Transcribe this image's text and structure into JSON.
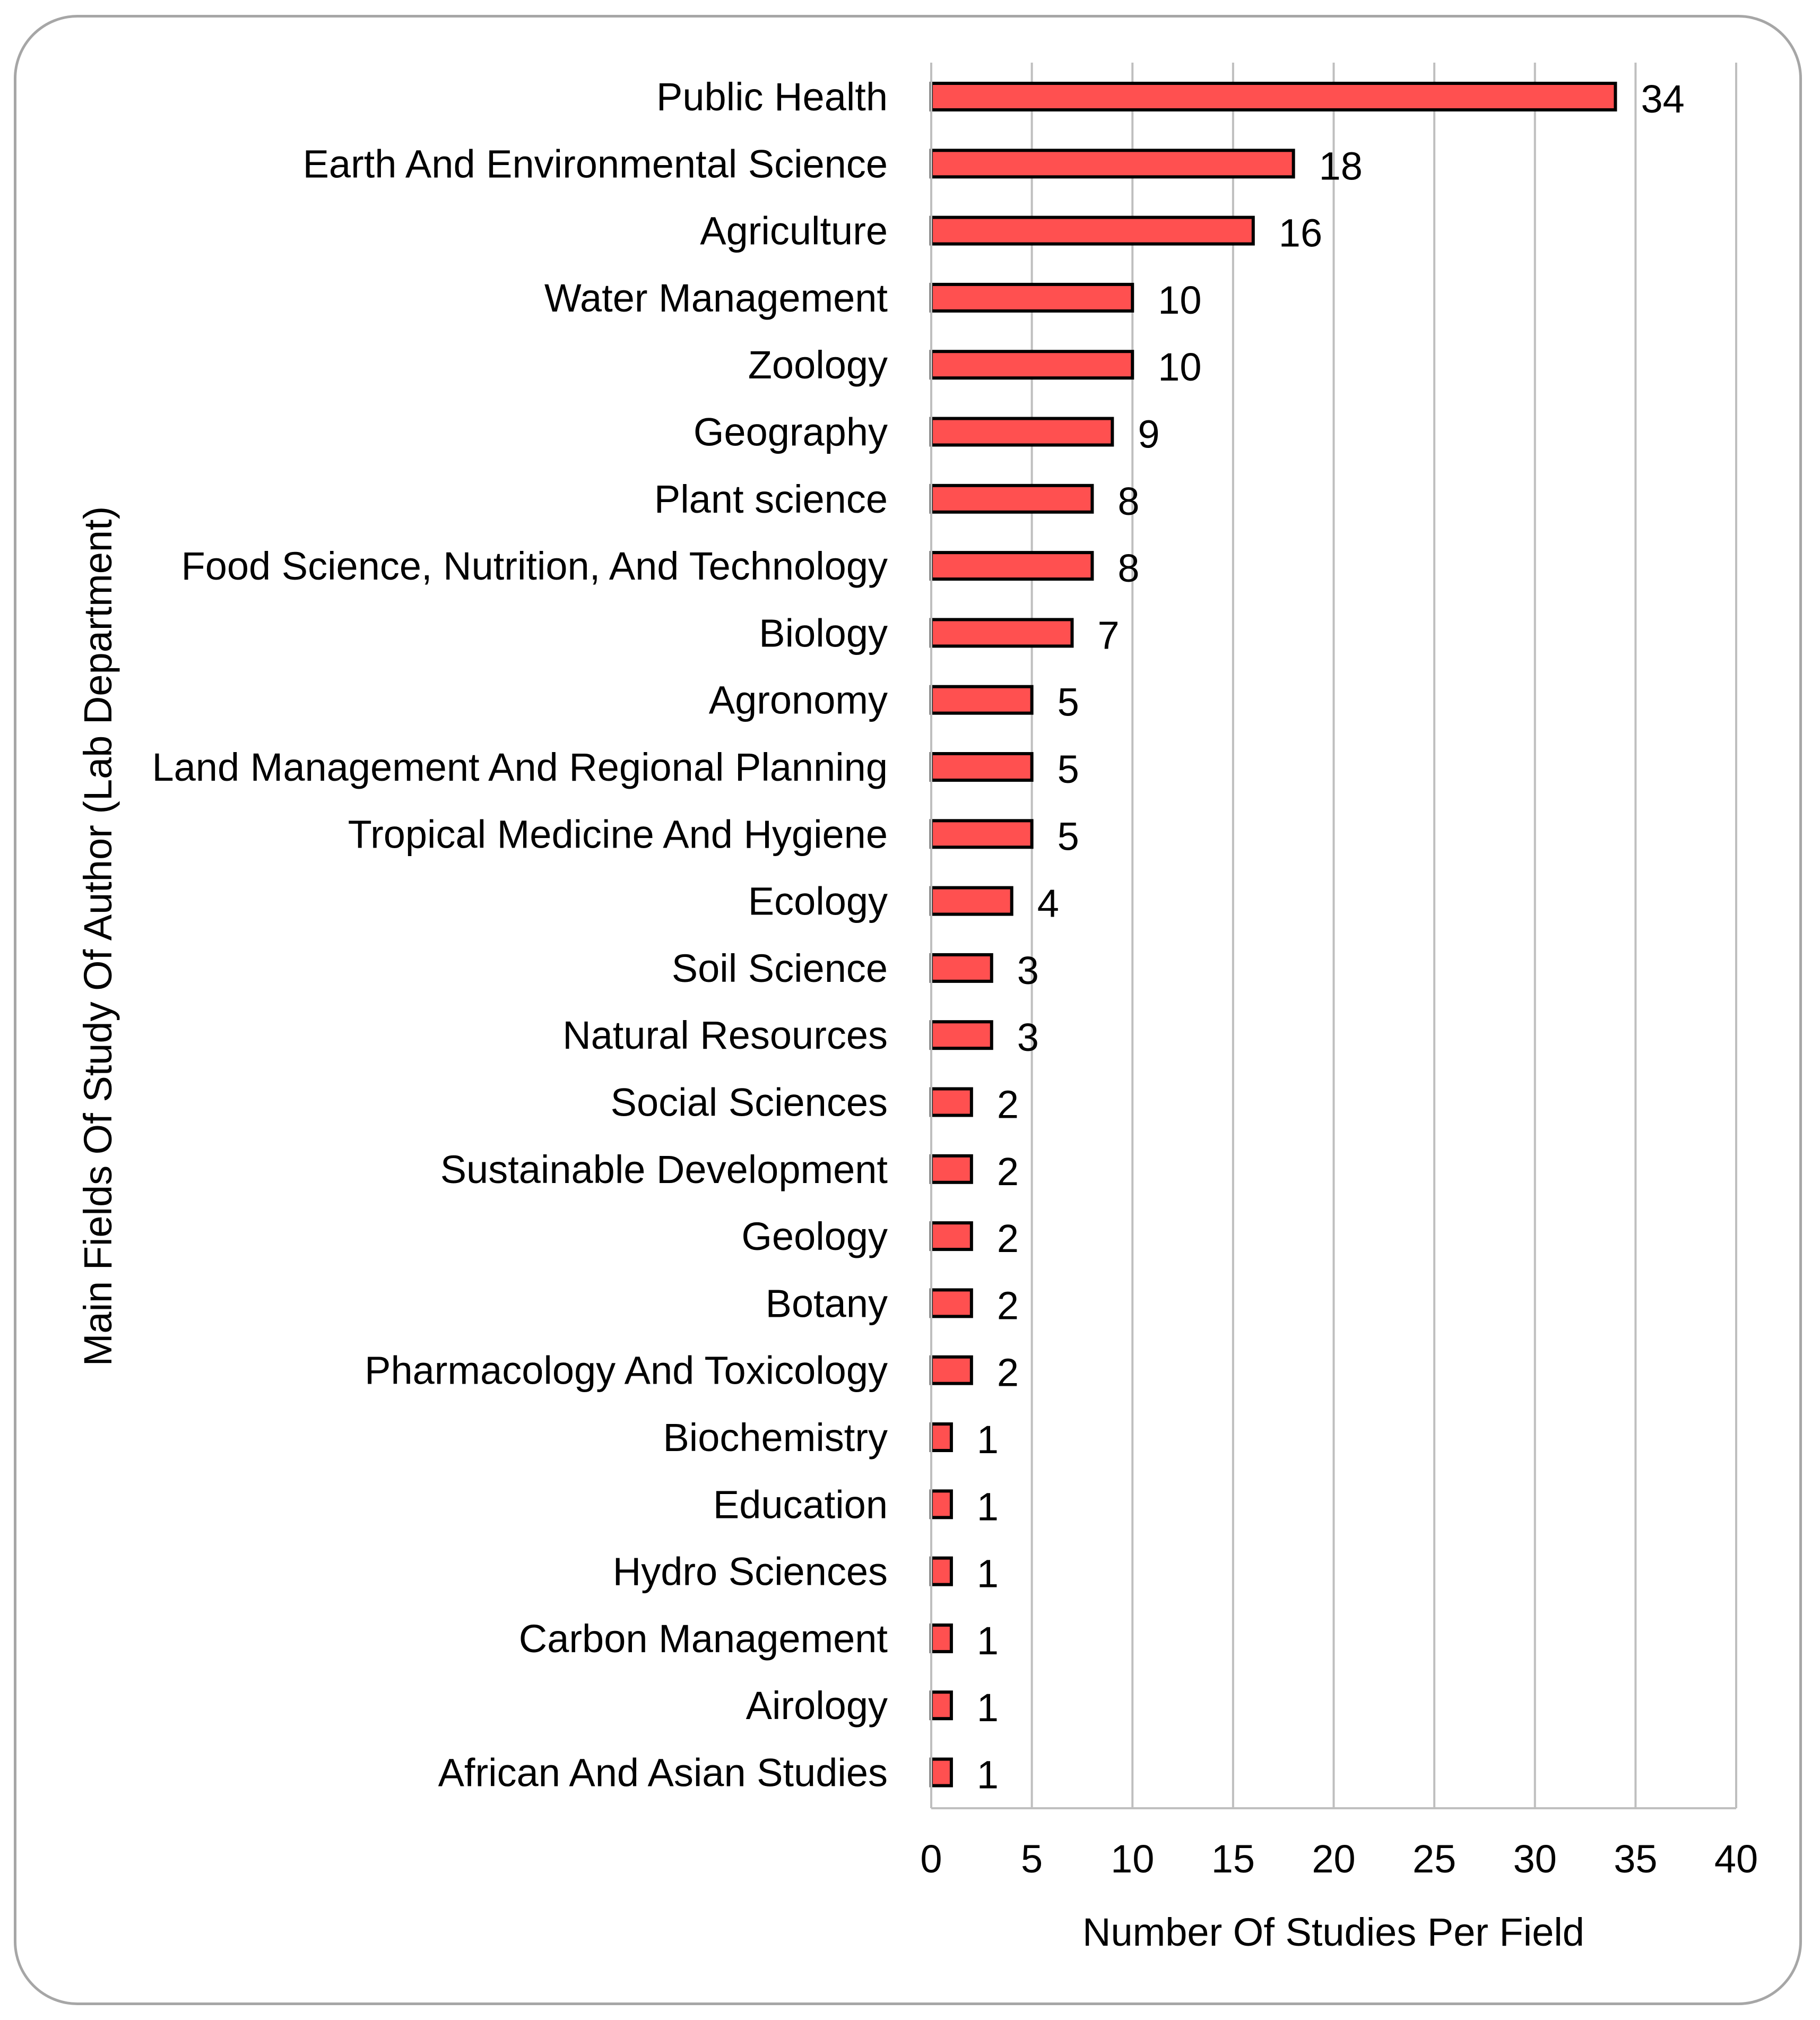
{
  "chart_data": {
    "type": "bar",
    "orientation": "horizontal",
    "title": "",
    "xlabel": "Number Of Studies Per Field",
    "ylabel": "Main Fields Of Study Of Author (Lab Department)",
    "xlim": [
      0,
      40
    ],
    "xticks": [
      0,
      5,
      10,
      15,
      20,
      25,
      30,
      35,
      40
    ],
    "grid": "vertical",
    "legend": "none",
    "bar_color": "#ff5050",
    "bar_edge_color": "#000000",
    "grid_color": "#bfbfbf",
    "categories": [
      "Public Health",
      "Earth And Environmental Science",
      "Agriculture",
      "Water Management",
      "Zoology",
      "Geography",
      "Plant science",
      "Food Science, Nutrition, And Technology",
      "Biology",
      "Agronomy",
      "Land Management And Regional Planning",
      "Tropical Medicine And Hygiene",
      "Ecology",
      "Soil Science",
      "Natural Resources",
      "Social Sciences",
      "Sustainable Development",
      "Geology",
      "Botany",
      "Pharmacology And Toxicology",
      "Biochemistry",
      "Education",
      "Hydro Sciences",
      "Carbon Management",
      "Airology",
      "African And Asian Studies"
    ],
    "values": [
      34,
      18,
      16,
      10,
      10,
      9,
      8,
      8,
      7,
      5,
      5,
      5,
      4,
      3,
      3,
      2,
      2,
      2,
      2,
      2,
      1,
      1,
      1,
      1,
      1,
      1
    ]
  }
}
